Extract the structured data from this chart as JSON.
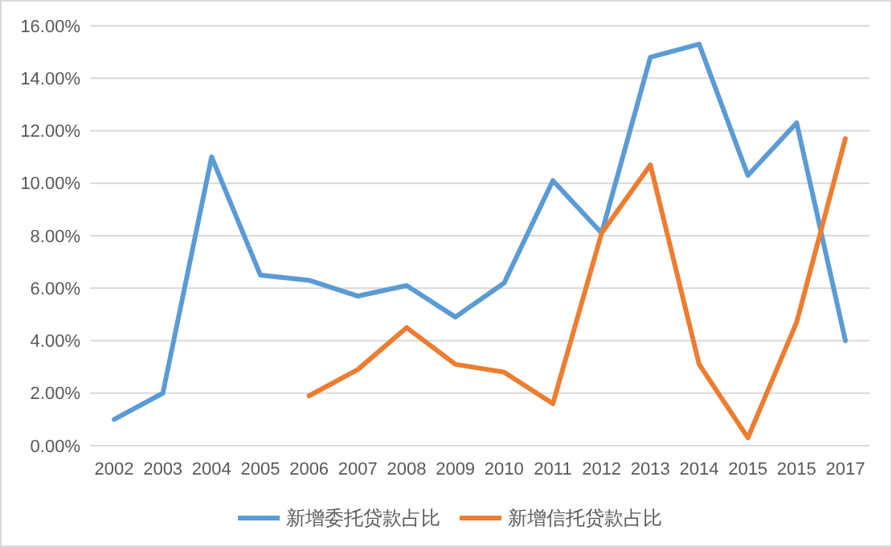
{
  "chart_data": {
    "type": "line",
    "categories": [
      "2002",
      "2003",
      "2004",
      "2005",
      "2006",
      "2007",
      "2008",
      "2009",
      "2010",
      "2011",
      "2012",
      "2013",
      "2014",
      "2015",
      "2015",
      "2017"
    ],
    "series": [
      {
        "name": "新增委托贷款占比",
        "color": "#5b9bd5",
        "values": [
          1.0,
          2.0,
          11.0,
          6.5,
          6.3,
          5.7,
          6.1,
          4.9,
          6.2,
          10.1,
          8.1,
          14.8,
          15.3,
          10.3,
          12.3,
          4.0
        ]
      },
      {
        "name": "新增信托贷款占比",
        "color": "#ed7d31",
        "values": [
          null,
          null,
          null,
          null,
          1.9,
          2.9,
          4.5,
          3.1,
          2.8,
          1.6,
          8.1,
          10.7,
          3.1,
          0.3,
          4.7,
          11.7
        ]
      }
    ],
    "ylim": [
      0,
      16
    ],
    "yticks": [
      {
        "value": 0,
        "label": "0.00%"
      },
      {
        "value": 2,
        "label": "2.00%"
      },
      {
        "value": 4,
        "label": "4.00%"
      },
      {
        "value": 6,
        "label": "6.00%"
      },
      {
        "value": 8,
        "label": "8.00%"
      },
      {
        "value": 10,
        "label": "10.00%"
      },
      {
        "value": 12,
        "label": "12.00%"
      },
      {
        "value": 14,
        "label": "14.00%"
      },
      {
        "value": 16,
        "label": "16.00%"
      }
    ],
    "grid": "y",
    "legend": "bottom",
    "marker": "none",
    "line_style": "solid"
  }
}
